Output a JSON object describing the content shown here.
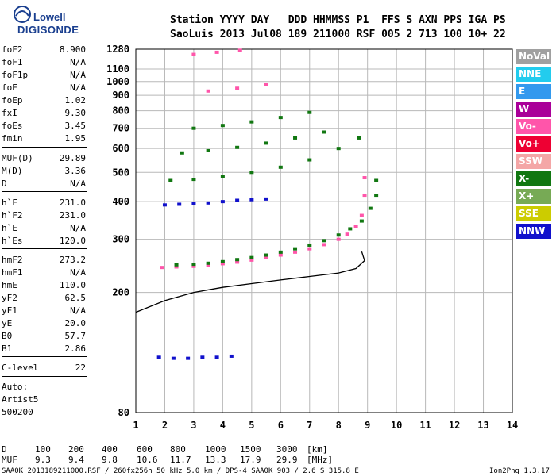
{
  "logo": {
    "line1": "Lowell",
    "line2": "DIGISONDE"
  },
  "header": {
    "row1": "Station YYYY DAY   DDD HHMMSS P1  FFS S AXN PPS IGA PS",
    "row2": "SaoLuis 2013 Jul08 189 211000 RSF 005 2 713 100 10+ 22"
  },
  "params": [
    {
      "name": "foF2",
      "value": "8.900"
    },
    {
      "name": "foF1",
      "value": "N/A"
    },
    {
      "name": "foF1p",
      "value": "N/A"
    },
    {
      "name": "foE",
      "value": "N/A"
    },
    {
      "name": "foEp",
      "value": "1.02"
    },
    {
      "name": "fxI",
      "value": "9.30"
    },
    {
      "name": "foEs",
      "value": "3.45"
    },
    {
      "name": "fmin",
      "value": "1.95"
    },
    {
      "name": "MUF(D)",
      "value": "29.89"
    },
    {
      "name": "M(D)",
      "value": "3.36"
    },
    {
      "name": "D",
      "value": "N/A"
    },
    {
      "name": "h`F",
      "value": "231.0"
    },
    {
      "name": "h`F2",
      "value": "231.0"
    },
    {
      "name": "h`E",
      "value": "N/A"
    },
    {
      "name": "h`Es",
      "value": "120.0"
    },
    {
      "name": "hmF2",
      "value": "273.2"
    },
    {
      "name": "hmF1",
      "value": "N/A"
    },
    {
      "name": "hmE",
      "value": "110.0"
    },
    {
      "name": "yF2",
      "value": "62.5"
    },
    {
      "name": "yF1",
      "value": "N/A"
    },
    {
      "name": "yE",
      "value": "20.0"
    },
    {
      "name": "B0",
      "value": "57.7"
    },
    {
      "name": "B1",
      "value": "2.86"
    },
    {
      "name": "C-level",
      "value": "22"
    }
  ],
  "auto": {
    "line1": "Auto:",
    "line2": "Artist5",
    "line3": "500200"
  },
  "legend": [
    {
      "label": "NoVal",
      "color": "#a0a0a0"
    },
    {
      "label": "NNE",
      "color": "#22ccee"
    },
    {
      "label": "E",
      "color": "#3399ee"
    },
    {
      "label": "W",
      "color": "#aa0099"
    },
    {
      "label": "Vo-",
      "color": "#ff55aa"
    },
    {
      "label": "Vo+",
      "color": "#ee0033"
    },
    {
      "label": "SSW",
      "color": "#f4a6a6"
    },
    {
      "label": "X-",
      "color": "#117711"
    },
    {
      "label": "X+",
      "color": "#77aa55"
    },
    {
      "label": "SSE",
      "color": "#cccc00"
    },
    {
      "label": "NNW",
      "color": "#1111cc"
    }
  ],
  "footer": {
    "d_label": "D",
    "d_values": [
      "100",
      "200",
      "400",
      "600",
      "800",
      "1000",
      "1500",
      "3000",
      "[km]"
    ],
    "muf_label": "MUF",
    "muf_values": [
      "9.3",
      "9.4",
      "9.8",
      "10.6",
      "11.7",
      "13.3",
      "17.9",
      "29.9",
      "[MHz]"
    ],
    "file_info": "SAA0K_2013189211000.RSF / 260fx256h 50 kHz 5.0 km / DPS-4 SAA0K 903 / 2.6 S 315.8 E",
    "version": "Ion2Png 1.3.17"
  },
  "chart_data": {
    "type": "scatter",
    "title": "Station YYYY DAY DDD HHMMSS P1 FFS S AXN PPS IGA PS",
    "xlabel": "",
    "ylabel": "",
    "xlim": [
      1,
      14
    ],
    "ylim": [
      80,
      1280
    ],
    "y_scale": "log",
    "x_ticks": [
      1,
      2,
      3,
      4,
      5,
      6,
      7,
      8,
      9,
      10,
      11,
      12,
      13,
      14
    ],
    "y_ticks": [
      80,
      200,
      300,
      400,
      500,
      600,
      700,
      800,
      900,
      1000,
      1100,
      1280
    ],
    "grid": true,
    "legend_position": "right",
    "series": [
      {
        "name": "Vo-",
        "color": "#ff55aa",
        "kind": "O-trace F",
        "points": [
          [
            1.9,
            242
          ],
          [
            2.4,
            243
          ],
          [
            3.0,
            244
          ],
          [
            3.5,
            246
          ],
          [
            4.0,
            249
          ],
          [
            4.5,
            252
          ],
          [
            5.0,
            256
          ],
          [
            5.5,
            261
          ],
          [
            6.0,
            266
          ],
          [
            6.5,
            272
          ],
          [
            7.0,
            279
          ],
          [
            7.5,
            288
          ],
          [
            8.0,
            300
          ],
          [
            8.3,
            312
          ],
          [
            8.6,
            330
          ],
          [
            8.8,
            360
          ],
          [
            8.9,
            420
          ],
          [
            8.9,
            480
          ]
        ]
      },
      {
        "name": "X-",
        "color": "#117711",
        "kind": "X-trace F",
        "points": [
          [
            2.4,
            247
          ],
          [
            3.0,
            248
          ],
          [
            3.5,
            250
          ],
          [
            4.0,
            253
          ],
          [
            4.5,
            257
          ],
          [
            5.0,
            261
          ],
          [
            5.5,
            266
          ],
          [
            6.0,
            272
          ],
          [
            6.5,
            279
          ],
          [
            7.0,
            287
          ],
          [
            7.5,
            297
          ],
          [
            8.0,
            310
          ],
          [
            8.4,
            325
          ],
          [
            8.8,
            345
          ],
          [
            9.1,
            380
          ],
          [
            9.3,
            420
          ],
          [
            9.3,
            470
          ]
        ]
      },
      {
        "name": "NNW",
        "color": "#1111cc",
        "kind": "Es traces",
        "points": [
          [
            2.0,
            390
          ],
          [
            2.5,
            392
          ],
          [
            3.0,
            394
          ],
          [
            3.5,
            396
          ],
          [
            4.0,
            400
          ],
          [
            4.5,
            404
          ],
          [
            5.0,
            406
          ],
          [
            5.5,
            408
          ],
          [
            1.8,
            122
          ],
          [
            2.3,
            121
          ],
          [
            2.8,
            121
          ],
          [
            3.3,
            122
          ],
          [
            3.8,
            122
          ],
          [
            4.3,
            123
          ]
        ]
      },
      {
        "name": "X-",
        "color": "#117711",
        "kind": "multiple echoes",
        "points": [
          [
            2.2,
            470
          ],
          [
            3.0,
            474
          ],
          [
            4.0,
            485
          ],
          [
            5.0,
            500
          ],
          [
            6.0,
            520
          ],
          [
            7.0,
            550
          ],
          [
            8.0,
            600
          ],
          [
            8.7,
            650
          ],
          [
            2.6,
            580
          ],
          [
            3.5,
            590
          ],
          [
            4.5,
            605
          ],
          [
            5.5,
            625
          ],
          [
            6.5,
            650
          ],
          [
            7.5,
            680
          ],
          [
            3.0,
            700
          ],
          [
            4.0,
            715
          ],
          [
            5.0,
            735
          ],
          [
            6.0,
            760
          ],
          [
            7.0,
            790
          ]
        ]
      },
      {
        "name": "Vo-",
        "color": "#ff55aa",
        "kind": "multiple echoes",
        "points": [
          [
            3.5,
            930
          ],
          [
            4.5,
            950
          ],
          [
            5.5,
            980
          ],
          [
            3.0,
            1230
          ],
          [
            3.8,
            1250
          ],
          [
            4.6,
            1270
          ]
        ]
      },
      {
        "name": "profile",
        "color": "#000000",
        "kind": "electron density profile",
        "points": [
          [
            1.0,
            172
          ],
          [
            2.0,
            188
          ],
          [
            3.0,
            200
          ],
          [
            4.0,
            208
          ],
          [
            5.0,
            214
          ],
          [
            6.0,
            220
          ],
          [
            7.0,
            226
          ],
          [
            8.0,
            232
          ],
          [
            8.6,
            240
          ],
          [
            8.9,
            255
          ],
          [
            8.8,
            273
          ]
        ]
      }
    ]
  }
}
